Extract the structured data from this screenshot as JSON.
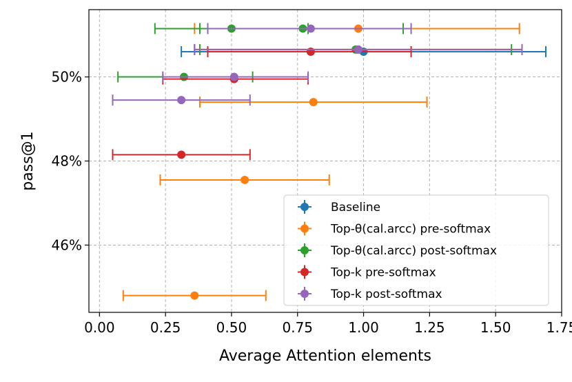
{
  "chart_data": {
    "type": "scatter",
    "title": "",
    "xlabel": "Average Attention elements",
    "ylabel": "pass@1",
    "xlim": [
      -0.04,
      1.75
    ],
    "ylim": [
      44.4,
      51.6
    ],
    "xticks": [
      0.0,
      0.25,
      0.5,
      0.75,
      1.0,
      1.25,
      1.5,
      1.75
    ],
    "xtick_labels": [
      "0.00",
      "0.25",
      "0.50",
      "0.75",
      "1.00",
      "1.25",
      "1.50",
      "1.75"
    ],
    "yticks": [
      46,
      48,
      50
    ],
    "ytick_labels": [
      "46%",
      "48%",
      "50%"
    ],
    "grid": true,
    "legend_position": "lower-right",
    "series": [
      {
        "name": "Baseline",
        "color": "#1f77b4",
        "points": [
          {
            "x": 1.0,
            "y": 50.6,
            "xerr_low": 0.31,
            "xerr_high": 1.69
          }
        ]
      },
      {
        "name": "Top-θ(cal.arcc) pre-softmax",
        "color": "#ff7f0e",
        "points": [
          {
            "x": 0.98,
            "y": 51.15,
            "xerr_low": 0.36,
            "xerr_high": 1.59
          },
          {
            "x": 0.81,
            "y": 49.4,
            "xerr_low": 0.38,
            "xerr_high": 1.24
          },
          {
            "x": 0.55,
            "y": 47.55,
            "xerr_low": 0.23,
            "xerr_high": 0.87
          },
          {
            "x": 0.36,
            "y": 44.8,
            "xerr_low": 0.09,
            "xerr_high": 0.63
          }
        ]
      },
      {
        "name": "Top-θ(cal.arcc) post-softmax",
        "color": "#2ca02c",
        "points": [
          {
            "x": 0.5,
            "y": 51.15,
            "xerr_low": 0.21,
            "xerr_high": 0.79
          },
          {
            "x": 0.77,
            "y": 51.15,
            "xerr_low": 0.38,
            "xerr_high": 1.15
          },
          {
            "x": 0.97,
            "y": 50.65,
            "xerr_low": 0.38,
            "xerr_high": 1.56
          },
          {
            "x": 0.32,
            "y": 50.0,
            "xerr_low": 0.07,
            "xerr_high": 0.58
          }
        ]
      },
      {
        "name": "Top-k pre-softmax",
        "color": "#d62728",
        "points": [
          {
            "x": 0.98,
            "y": 50.65,
            "xerr_low": 0.36,
            "xerr_high": 1.6
          },
          {
            "x": 0.8,
            "y": 50.6,
            "xerr_low": 0.41,
            "xerr_high": 1.18
          },
          {
            "x": 0.51,
            "y": 49.95,
            "xerr_low": 0.24,
            "xerr_high": 0.79
          },
          {
            "x": 0.31,
            "y": 48.15,
            "xerr_low": 0.05,
            "xerr_high": 0.57
          }
        ]
      },
      {
        "name": "Top-k post-softmax",
        "color": "#9467bd",
        "points": [
          {
            "x": 0.8,
            "y": 51.15,
            "xerr_low": 0.41,
            "xerr_high": 1.18
          },
          {
            "x": 0.98,
            "y": 50.65,
            "xerr_low": 0.36,
            "xerr_high": 1.6
          },
          {
            "x": 0.51,
            "y": 50.0,
            "xerr_low": 0.24,
            "xerr_high": 0.79
          },
          {
            "x": 0.31,
            "y": 49.45,
            "xerr_low": 0.05,
            "xerr_high": 0.57
          }
        ]
      }
    ]
  }
}
